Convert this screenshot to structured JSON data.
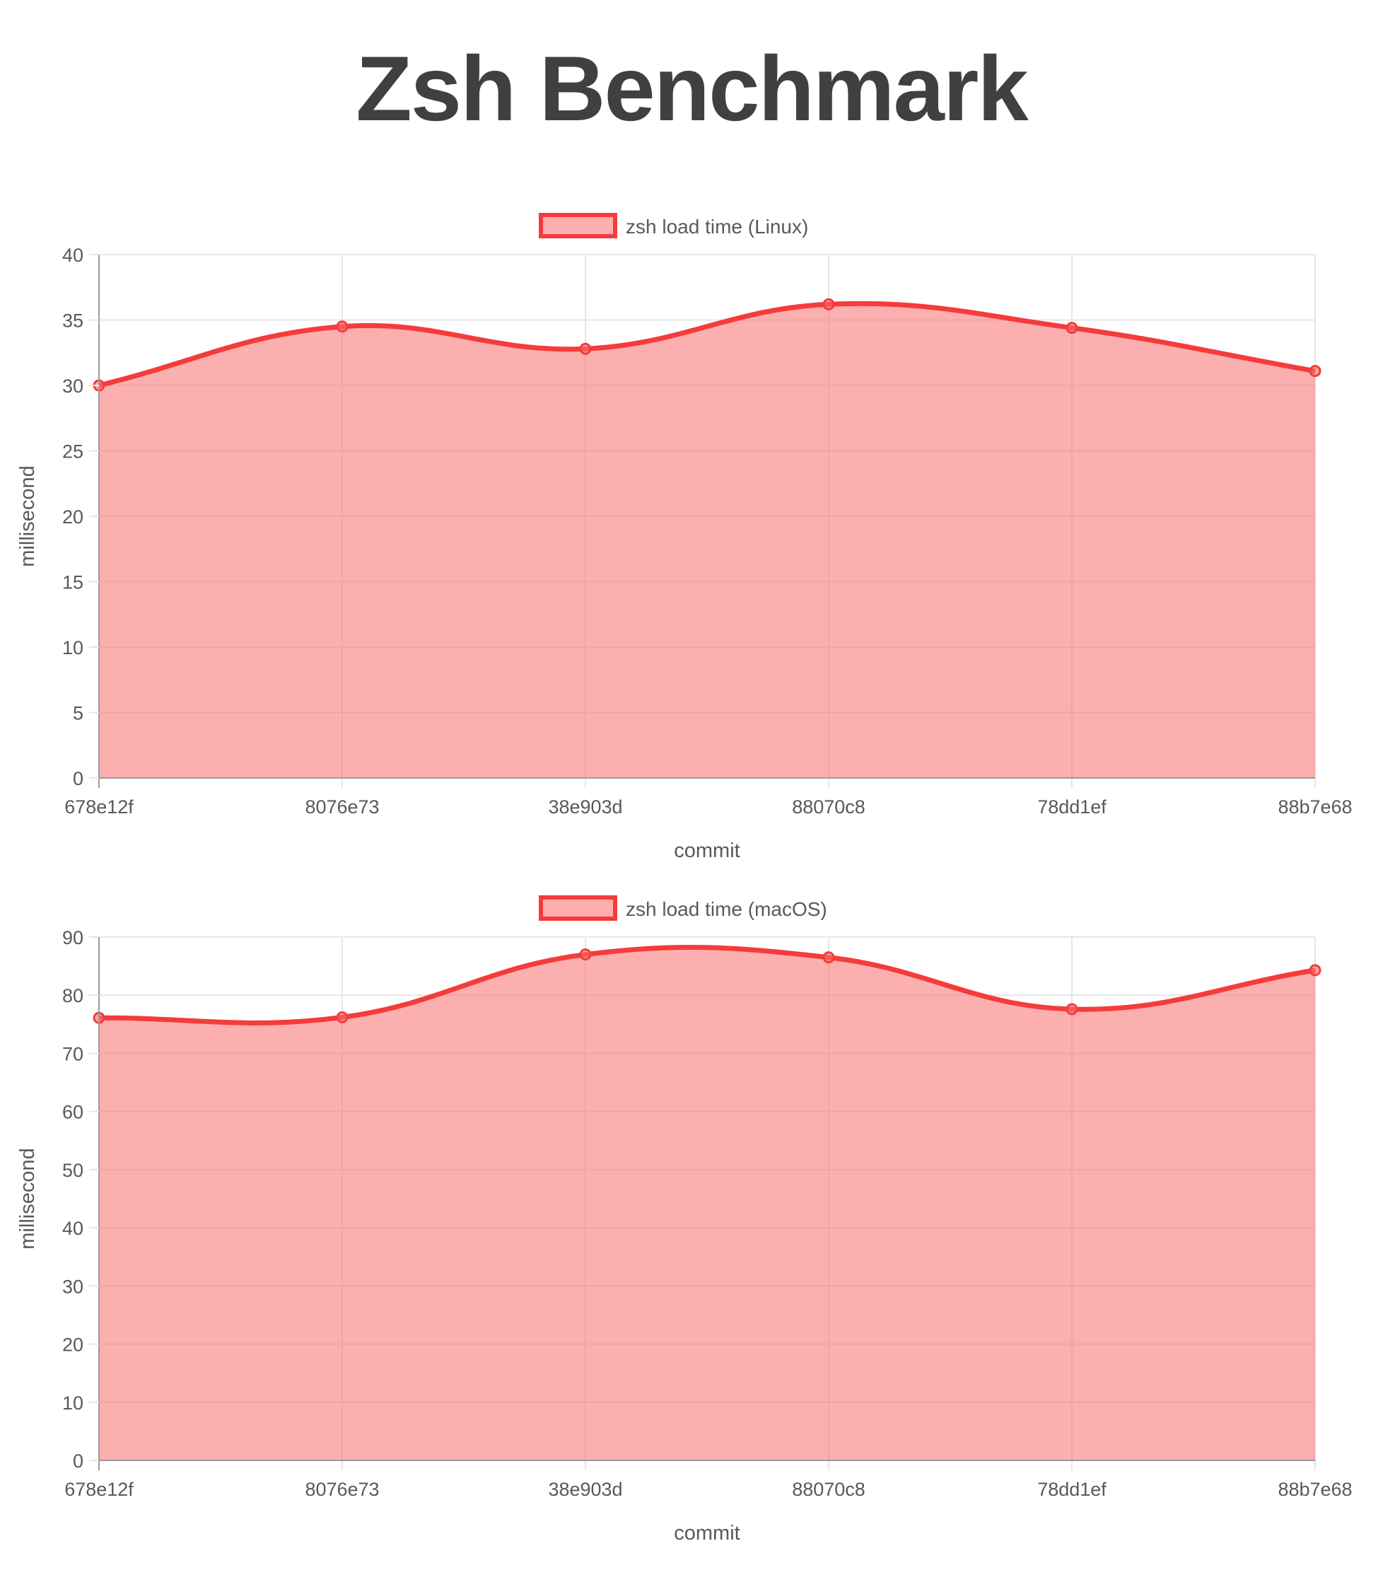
{
  "page": {
    "title": "Zsh Benchmark"
  },
  "colors": {
    "line": "#f53b3b",
    "fill": "rgba(247,110,110,0.55)",
    "grid": "#e6e6e6",
    "axis": "#9a9a9a"
  },
  "chart_data": [
    {
      "type": "area",
      "title": "",
      "legend": {
        "label": "zsh load time (Linux)",
        "position": "top"
      },
      "xlabel": "commit",
      "ylabel": "millisecond",
      "categories": [
        "678e12f",
        "8076e73",
        "38e903d",
        "88070c8",
        "78dd1ef",
        "88b7e68"
      ],
      "series": [
        {
          "name": "zsh load time (Linux)",
          "values": [
            30.0,
            34.5,
            32.8,
            36.2,
            34.4,
            31.1
          ]
        }
      ],
      "ylim": [
        0,
        40
      ],
      "yticks": [
        0,
        5,
        10,
        15,
        20,
        25,
        30,
        35,
        40
      ],
      "grid": true,
      "smooth": true
    },
    {
      "type": "area",
      "title": "",
      "legend": {
        "label": "zsh load time (macOS)",
        "position": "top"
      },
      "xlabel": "commit",
      "ylabel": "millisecond",
      "categories": [
        "678e12f",
        "8076e73",
        "38e903d",
        "88070c8",
        "78dd1ef",
        "88b7e68"
      ],
      "series": [
        {
          "name": "zsh load time (macOS)",
          "values": [
            76.1,
            76.2,
            87.0,
            86.5,
            77.6,
            84.3
          ]
        }
      ],
      "ylim": [
        0,
        90
      ],
      "yticks": [
        0,
        10,
        20,
        30,
        40,
        50,
        60,
        70,
        80,
        90
      ],
      "grid": true,
      "smooth": true
    }
  ]
}
